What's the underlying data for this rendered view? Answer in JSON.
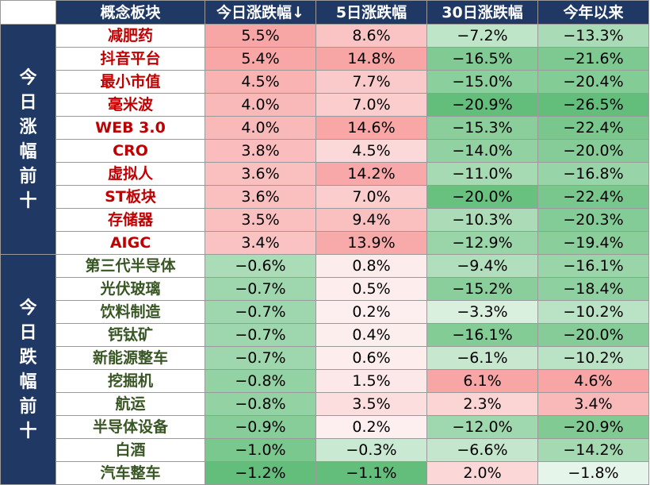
{
  "headers": [
    "概念板块",
    "今日涨跌幅↓",
    "5日涨跌幅",
    "30日涨跌幅",
    "今年以来"
  ],
  "groups": [
    {
      "label": "今日涨幅前十",
      "kind": "up",
      "rows": [
        {
          "name": "减肥药",
          "values": [
            "5.5%",
            "8.6%",
            "−7.2%",
            "−13.3%"
          ]
        },
        {
          "name": "抖音平台",
          "values": [
            "5.4%",
            "14.8%",
            "−16.5%",
            "−21.6%"
          ]
        },
        {
          "name": "最小市值",
          "values": [
            "4.5%",
            "7.7%",
            "−15.0%",
            "−20.4%"
          ]
        },
        {
          "name": "毫米波",
          "values": [
            "4.0%",
            "7.0%",
            "−20.9%",
            "−26.5%"
          ]
        },
        {
          "name": "WEB 3.0",
          "values": [
            "4.0%",
            "14.6%",
            "−15.3%",
            "−22.4%"
          ]
        },
        {
          "name": "CRO",
          "values": [
            "3.8%",
            "4.5%",
            "−14.0%",
            "−20.0%"
          ]
        },
        {
          "name": "虚拟人",
          "values": [
            "3.6%",
            "14.2%",
            "−11.0%",
            "−16.8%"
          ]
        },
        {
          "name": "ST板块",
          "values": [
            "3.6%",
            "7.0%",
            "−20.0%",
            "−22.4%"
          ]
        },
        {
          "name": "存储器",
          "values": [
            "3.5%",
            "9.4%",
            "−10.3%",
            "−20.3%"
          ]
        },
        {
          "name": "AIGC",
          "values": [
            "3.4%",
            "13.9%",
            "−12.9%",
            "−19.4%"
          ]
        }
      ]
    },
    {
      "label": "今日跌幅前十",
      "kind": "down",
      "rows": [
        {
          "name": "第三代半导体",
          "values": [
            "−0.6%",
            "0.8%",
            "−9.4%",
            "−16.1%"
          ]
        },
        {
          "name": "光伏玻璃",
          "values": [
            "−0.7%",
            "0.5%",
            "−15.2%",
            "−18.4%"
          ]
        },
        {
          "name": "饮料制造",
          "values": [
            "−0.7%",
            "0.2%",
            "−3.3%",
            "−10.2%"
          ]
        },
        {
          "name": "钙钛矿",
          "values": [
            "−0.7%",
            "0.4%",
            "−16.1%",
            "−20.0%"
          ]
        },
        {
          "name": "新能源整车",
          "values": [
            "−0.7%",
            "0.6%",
            "−6.1%",
            "−10.2%"
          ]
        },
        {
          "name": "挖掘机",
          "values": [
            "−0.8%",
            "1.5%",
            "6.1%",
            "4.6%"
          ]
        },
        {
          "name": "航运",
          "values": [
            "−0.8%",
            "3.5%",
            "2.3%",
            "3.4%"
          ]
        },
        {
          "name": "半导体设备",
          "values": [
            "−0.9%",
            "0.2%",
            "−12.0%",
            "−20.9%"
          ]
        },
        {
          "name": "白酒",
          "values": [
            "−1.0%",
            "−0.3%",
            "−6.6%",
            "−14.2%"
          ]
        },
        {
          "name": "汽车整车",
          "values": [
            "−1.2%",
            "−1.1%",
            "2.0%",
            "−1.8%"
          ]
        }
      ]
    }
  ],
  "colors": {
    "header_bg": "#1f3864",
    "header_text": "#ffffff",
    "up_name": "#c00000",
    "down_name": "#375623",
    "positive_scale": [
      "#fdf0f0",
      "#f8a5a5"
    ],
    "negative_scale": [
      "#f0f9f2",
      "#63be7b"
    ]
  }
}
